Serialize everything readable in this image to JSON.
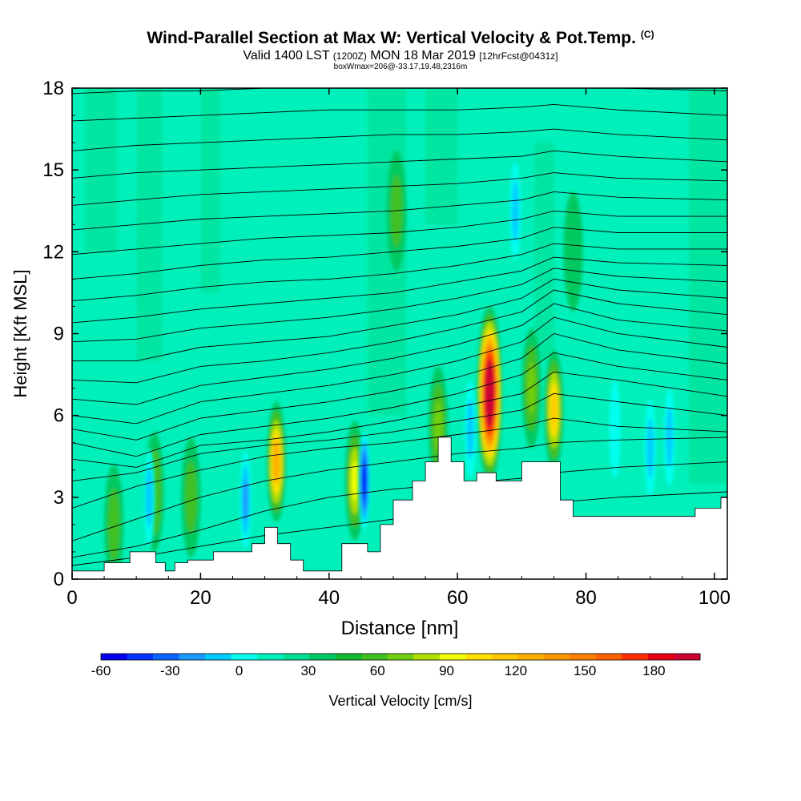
{
  "chart_data": {
    "type": "heatmap",
    "title": "Wind-Parallel Section at Max W: Vertical Velocity & Pot.Temp.",
    "title_mark": "(C)",
    "subtitle_parts": [
      "Valid 1400 LST",
      "(1200Z)",
      "MON 18 Mar 2019",
      "[12hrFcst@0431z]"
    ],
    "note": "boxWmax=206@-33.17,19.48,2316m",
    "xlabel": "Distance [nm]",
    "ylabel": "Height [Kft MSL]",
    "xlim": [
      0,
      102
    ],
    "ylim": [
      0,
      18
    ],
    "xticks": [
      0,
      20,
      40,
      60,
      80,
      100
    ],
    "yticks": [
      0,
      3,
      6,
      9,
      12,
      15,
      18
    ],
    "colorbar": {
      "label": "Vertical Velocity [cm/s]",
      "ticks": [
        -60,
        -30,
        0,
        30,
        60,
        90,
        120,
        150,
        180
      ],
      "min": -60,
      "max": 200,
      "colors": [
        "#0000ee",
        "#0033ff",
        "#0a66ff",
        "#1a99ff",
        "#00ccff",
        "#00ffee",
        "#00f0bb",
        "#00e090",
        "#00c860",
        "#10b830",
        "#40c020",
        "#70d010",
        "#b0e000",
        "#f0ff00",
        "#ffe000",
        "#ffc800",
        "#ffb000",
        "#ff9800",
        "#ff7f00",
        "#ff6000",
        "#ff3000",
        "#e80010",
        "#cc0033"
      ]
    },
    "background_w": 5,
    "terrain_kft": [
      [
        0,
        0.3
      ],
      [
        5,
        0.3
      ],
      [
        5,
        0.6
      ],
      [
        9,
        0.6
      ],
      [
        9,
        1.0
      ],
      [
        13,
        1.0
      ],
      [
        13,
        0.6
      ],
      [
        14.5,
        0.6
      ],
      [
        14.5,
        0.3
      ],
      [
        16,
        0.3
      ],
      [
        16,
        0.6
      ],
      [
        18,
        0.6
      ],
      [
        18,
        0.7
      ],
      [
        22,
        0.7
      ],
      [
        22,
        1.0
      ],
      [
        28,
        1.0
      ],
      [
        28,
        1.3
      ],
      [
        30,
        1.3
      ],
      [
        30,
        1.9
      ],
      [
        32,
        1.9
      ],
      [
        32,
        1.3
      ],
      [
        34,
        1.3
      ],
      [
        34,
        0.7
      ],
      [
        36,
        0.7
      ],
      [
        36,
        0.3
      ],
      [
        39,
        0.3
      ],
      [
        39,
        0.3
      ],
      [
        42,
        0.3
      ],
      [
        42,
        1.3
      ],
      [
        46,
        1.3
      ],
      [
        46,
        1.0
      ],
      [
        48,
        1.0
      ],
      [
        48,
        2.0
      ],
      [
        50,
        2.0
      ],
      [
        50,
        2.9
      ],
      [
        53,
        2.9
      ],
      [
        53,
        3.6
      ],
      [
        55,
        3.6
      ],
      [
        55,
        4.3
      ],
      [
        57,
        4.3
      ],
      [
        57,
        5.2
      ],
      [
        59,
        5.2
      ],
      [
        59,
        4.3
      ],
      [
        61,
        4.3
      ],
      [
        61,
        3.6
      ],
      [
        63,
        3.6
      ],
      [
        63,
        3.9
      ],
      [
        66,
        3.9
      ],
      [
        66,
        3.6
      ],
      [
        70,
        3.6
      ],
      [
        70,
        4.3
      ],
      [
        76,
        4.3
      ],
      [
        76,
        2.9
      ],
      [
        78,
        2.9
      ],
      [
        78,
        2.3
      ],
      [
        87,
        2.3
      ],
      [
        97,
        2.3
      ],
      [
        97,
        2.6
      ],
      [
        101,
        2.6
      ],
      [
        101,
        3.0
      ],
      [
        102,
        3.0
      ]
    ],
    "updrafts": [
      {
        "x": 6.5,
        "z": 2.0,
        "w": 40
      },
      {
        "x": 12.8,
        "z": 3.2,
        "w": 45
      },
      {
        "x": 18.5,
        "z": 3.0,
        "w": 40
      },
      {
        "x": 31.8,
        "z": 4.3,
        "w": 105
      },
      {
        "x": 44.0,
        "z": 3.6,
        "w": 70
      },
      {
        "x": 50.5,
        "z": 13.5,
        "w": 40
      },
      {
        "x": 57.0,
        "z": 5.6,
        "w": 50
      },
      {
        "x": 65.0,
        "z": 6.8,
        "w": 206
      },
      {
        "x": 71.5,
        "z": 7.0,
        "w": 55
      },
      {
        "x": 75.0,
        "z": 6.2,
        "w": 90
      },
      {
        "x": 78.0,
        "z": 12.0,
        "w": 20
      }
    ],
    "downdrafts": [
      {
        "x": 12.0,
        "z": 3.0,
        "w": -25
      },
      {
        "x": 27.0,
        "z": 2.9,
        "w": -35
      },
      {
        "x": 45.5,
        "z": 3.6,
        "w": -60
      },
      {
        "x": 62.0,
        "z": 5.5,
        "w": -25
      },
      {
        "x": 69.0,
        "z": 13.5,
        "w": -20
      },
      {
        "x": 90.0,
        "z": 4.8,
        "w": -25
      },
      {
        "x": 93.0,
        "z": 5.2,
        "w": -20
      },
      {
        "x": 84.5,
        "z": 5.5,
        "w": -15
      }
    ],
    "theta_contours": [
      {
        "label": "",
        "z": [
          0.5,
          0.8,
          1.2,
          1.6,
          1.9,
          2.2,
          2.4,
          2.6,
          2.8,
          3.0,
          3.2
        ]
      },
      {
        "label": "",
        "z": [
          0.8,
          1.2,
          1.8,
          2.5,
          3.0,
          3.3,
          3.5,
          3.7,
          3.9,
          4.1,
          4.3
        ]
      },
      {
        "label": "",
        "z": [
          1.4,
          2.2,
          3.0,
          3.6,
          4.0,
          4.3,
          4.6,
          4.8,
          5.0,
          5.1,
          5.2
        ]
      },
      {
        "label": "",
        "z": [
          2.6,
          3.4,
          4.0,
          4.5,
          4.8,
          5.0,
          5.3,
          5.6,
          5.9,
          5.6,
          5.4
        ]
      },
      {
        "label": "",
        "z": [
          3.6,
          3.9,
          4.6,
          4.9,
          5.1,
          5.4,
          5.8,
          6.2,
          6.8,
          6.5,
          6.0
        ]
      },
      {
        "label": "",
        "z": [
          4.4,
          4.1,
          4.9,
          5.1,
          5.4,
          5.8,
          6.3,
          6.8,
          7.6,
          7.3,
          6.7
        ]
      },
      {
        "label": "",
        "z": [
          5.0,
          4.5,
          5.3,
          5.6,
          5.9,
          6.3,
          6.8,
          7.5,
          8.3,
          7.8,
          7.3
        ]
      },
      {
        "label": "",
        "z": [
          5.5,
          5.1,
          5.9,
          6.2,
          6.5,
          6.9,
          7.4,
          8.1,
          9.0,
          8.4,
          7.9
        ]
      },
      {
        "label": "",
        "z": [
          6.0,
          5.7,
          6.5,
          6.8,
          7.1,
          7.5,
          8.0,
          8.7,
          9.6,
          9.0,
          8.5
        ]
      },
      {
        "label": "",
        "z": [
          6.6,
          6.4,
          7.1,
          7.4,
          7.7,
          8.1,
          8.6,
          9.3,
          10.1,
          9.5,
          9.1
        ]
      },
      {
        "label": "",
        "z": [
          7.3,
          7.2,
          7.8,
          8.0,
          8.3,
          8.7,
          9.2,
          9.8,
          10.6,
          10.1,
          9.7
        ]
      },
      {
        "label": "",
        "z": [
          8.0,
          8.0,
          8.5,
          8.7,
          8.9,
          9.3,
          9.7,
          10.3,
          11.0,
          10.6,
          10.3
        ]
      },
      {
        "label": "",
        "z": [
          8.7,
          8.8,
          9.2,
          9.4,
          9.6,
          9.9,
          10.3,
          10.8,
          11.4,
          11.1,
          10.9
        ]
      },
      {
        "label": "",
        "z": [
          9.4,
          9.6,
          9.9,
          10.1,
          10.3,
          10.5,
          10.9,
          11.3,
          11.8,
          11.6,
          11.5
        ]
      },
      {
        "label": "",
        "z": [
          10.2,
          10.4,
          10.7,
          10.9,
          11.0,
          11.2,
          11.5,
          11.9,
          12.3,
          12.1,
          12.1
        ]
      },
      {
        "label": "",
        "z": [
          11.0,
          11.2,
          11.5,
          11.7,
          11.8,
          12.0,
          12.2,
          12.5,
          12.9,
          12.7,
          12.7
        ]
      },
      {
        "label": "",
        "z": [
          11.9,
          12.1,
          12.3,
          12.5,
          12.6,
          12.7,
          12.9,
          13.2,
          13.5,
          13.3,
          13.3
        ]
      },
      {
        "label": "",
        "z": [
          12.8,
          13.0,
          13.2,
          13.3,
          13.4,
          13.5,
          13.7,
          13.9,
          14.2,
          14.0,
          13.9
        ]
      },
      {
        "label": "",
        "z": [
          13.7,
          13.9,
          14.1,
          14.2,
          14.3,
          14.4,
          14.5,
          14.7,
          14.9,
          14.7,
          14.6
        ]
      },
      {
        "label": "",
        "z": [
          14.7,
          14.9,
          15.0,
          15.1,
          15.2,
          15.3,
          15.4,
          15.5,
          15.7,
          15.5,
          15.3
        ]
      },
      {
        "label": "",
        "z": [
          15.7,
          15.9,
          16.0,
          16.1,
          16.2,
          16.3,
          16.3,
          16.4,
          16.5,
          16.3,
          16.1
        ]
      },
      {
        "label": "",
        "z": [
          16.8,
          16.9,
          17.0,
          17.1,
          17.2,
          17.2,
          17.2,
          17.3,
          17.4,
          17.2,
          17.0
        ]
      },
      {
        "label": "",
        "z": [
          17.8,
          17.9,
          17.9,
          18.0,
          18.0,
          18.0,
          18.0,
          18.0,
          18.0,
          18.0,
          17.9
        ]
      }
    ],
    "theta_x": [
      0,
      10,
      20,
      30,
      40,
      50,
      60,
      70,
      75,
      85,
      102
    ]
  }
}
